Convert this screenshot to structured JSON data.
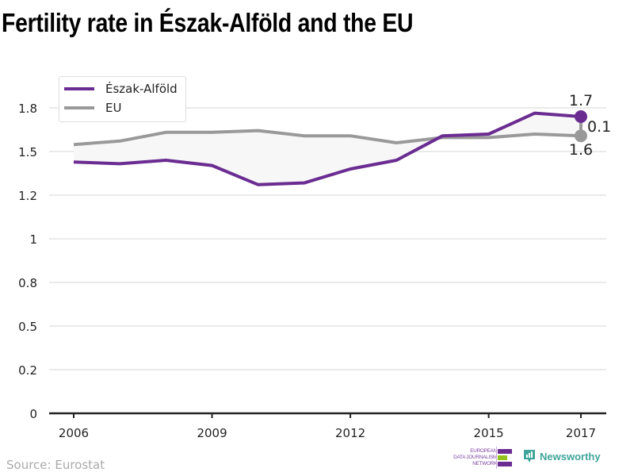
{
  "title": "Fertility rate in Észak-Alföld and the EU",
  "source": "Source: Eurostat",
  "logos": {
    "edjn_lines": [
      "EUROPEAN",
      "DATA JOURNALISM",
      "NETWORK"
    ],
    "newsworthy": "Newsworthy"
  },
  "colors": {
    "region": "#6a2c91",
    "eu": "#999999",
    "fill": "#f7f7f7",
    "grid": "#e3e3e3",
    "axis": "#222222",
    "edjn_purple": "#6a2c91",
    "edjn_green": "#95c11f",
    "newsworthy_teal": "#3fa59a"
  },
  "chart_data": {
    "type": "line",
    "title": "Fertility rate in Észak-Alföld and the EU",
    "xlabel": "",
    "ylabel": "",
    "x": [
      2006,
      2007,
      2008,
      2009,
      2010,
      2011,
      2012,
      2013,
      2014,
      2015,
      2016,
      2017
    ],
    "x_ticks": [
      "2006",
      "2009",
      "2012",
      "2015",
      "2017"
    ],
    "x_tick_values": [
      2006,
      2009,
      2012,
      2015,
      2017
    ],
    "y_ticks": [
      0,
      0.25,
      0.5,
      0.75,
      1,
      1.25,
      1.5,
      1.75
    ],
    "y_tick_labels": [
      "0",
      "0.2",
      "0.5",
      "0.8",
      "1",
      "1.2",
      "1.5",
      "1.8"
    ],
    "ylim": [
      0,
      1.75
    ],
    "grid": true,
    "legend_position": "top-left",
    "series": [
      {
        "name": "Észak-Alföld",
        "values": [
          1.44,
          1.43,
          1.45,
          1.42,
          1.31,
          1.32,
          1.4,
          1.45,
          1.59,
          1.6,
          1.72,
          1.7
        ]
      },
      {
        "name": "EU",
        "values": [
          1.54,
          1.56,
          1.61,
          1.61,
          1.62,
          1.59,
          1.59,
          1.55,
          1.58,
          1.58,
          1.6,
          1.59
        ]
      }
    ],
    "annotations": {
      "region_last_label": "1.7",
      "eu_last_label": "1.6",
      "difference_label": "0.1"
    }
  }
}
